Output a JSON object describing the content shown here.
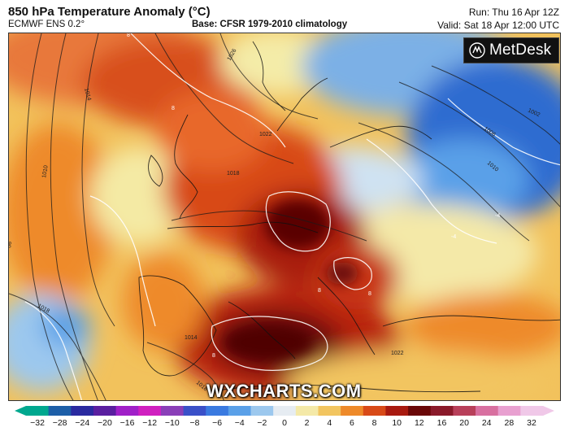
{
  "header": {
    "title": "850 hPa Temperature Anomaly (°C)",
    "model": "ECMWF ENS 0.2°",
    "base": "Base: CFSR 1979-2010 climatology",
    "run": "Run: Thu 16 Apr 12Z",
    "valid": "Valid: Sat 18 Apr 12:00 UTC"
  },
  "logo": {
    "text": "MetDesk",
    "icon": "metdesk-logo-icon"
  },
  "watermark": "WXCHARTS.COM",
  "map": {
    "isobar_labels": [
      "1026",
      "1014",
      "1022",
      "1018",
      "1010",
      "1002",
      "1006",
      "1010",
      "1018",
      "1014",
      "1018",
      "1022",
      "06"
    ],
    "anomaly_labels": [
      "8",
      "8",
      "8",
      "8",
      "8",
      "-4",
      "-4"
    ]
  },
  "colorbar": {
    "ticks": [
      "−32",
      "−28",
      "−24",
      "−20",
      "−16",
      "−12",
      "−10",
      "−8",
      "−6",
      "−4",
      "−2",
      "0",
      "2",
      "4",
      "6",
      "8",
      "10",
      "12",
      "16",
      "20",
      "24",
      "28",
      "32"
    ],
    "colors": [
      "#00a88f",
      "#1d5fa8",
      "#2a2aa0",
      "#5a1fa0",
      "#a020c8",
      "#d020c0",
      "#8a3fb8",
      "#3a50c8",
      "#3a7ae0",
      "#5aa0e8",
      "#9cc8ee",
      "#e6ecf2",
      "#f4e9a8",
      "#f2c560",
      "#ee8a2a",
      "#d84a18",
      "#a81a10",
      "#6a0808",
      "#8a1a2a",
      "#b8405a",
      "#d870a0",
      "#e8a0d0",
      "#f0c8e8"
    ]
  }
}
